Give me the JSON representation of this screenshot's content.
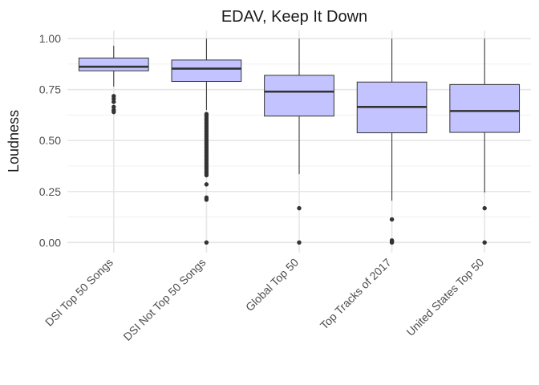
{
  "chart_data": {
    "type": "box",
    "title": "EDAV, Keep It Down",
    "xlabel": "",
    "ylabel": "Loudness",
    "ylim": [
      -0.05,
      1.04
    ],
    "yticks": [
      0.0,
      0.25,
      0.5,
      0.75,
      1.0
    ],
    "ytick_labels": [
      "0.00",
      "0.25",
      "0.50",
      "0.75",
      "1.00"
    ],
    "grid": true,
    "box_color": "#c3c3ff",
    "categories": [
      "DSI Top 50 Songs",
      "DSI Not Top 50 Songs",
      "Global Top 50",
      "Top Tracks of 2017",
      "United States Top 50"
    ],
    "boxes": [
      {
        "whisker_low": 0.765,
        "q1": 0.842,
        "median": 0.862,
        "q3": 0.905,
        "whisker_high": 0.965,
        "outliers": [
          0.718,
          0.705,
          0.69,
          0.665,
          0.65,
          0.64
        ]
      },
      {
        "whisker_low": 0.65,
        "q1": 0.79,
        "median": 0.853,
        "q3": 0.895,
        "whisker_high": 1.0,
        "outliers": [
          0.63,
          0.62,
          0.61,
          0.6,
          0.59,
          0.58,
          0.57,
          0.56,
          0.55,
          0.54,
          0.53,
          0.52,
          0.51,
          0.5,
          0.49,
          0.48,
          0.47,
          0.46,
          0.45,
          0.44,
          0.43,
          0.42,
          0.41,
          0.4,
          0.39,
          0.38,
          0.37,
          0.36,
          0.35,
          0.34,
          0.33,
          0.285,
          0.22,
          0.21,
          0.0
        ]
      },
      {
        "whisker_low": 0.335,
        "q1": 0.62,
        "median": 0.74,
        "q3": 0.82,
        "whisker_high": 1.0,
        "outliers": [
          0.168,
          0.0
        ]
      },
      {
        "whisker_low": 0.205,
        "q1": 0.538,
        "median": 0.665,
        "q3": 0.787,
        "whisker_high": 1.0,
        "outliers": [
          0.113,
          0.01,
          0.005,
          0.0
        ]
      },
      {
        "whisker_low": 0.245,
        "q1": 0.54,
        "median": 0.645,
        "q3": 0.775,
        "whisker_high": 1.0,
        "outliers": [
          0.168,
          0.0
        ]
      }
    ]
  }
}
